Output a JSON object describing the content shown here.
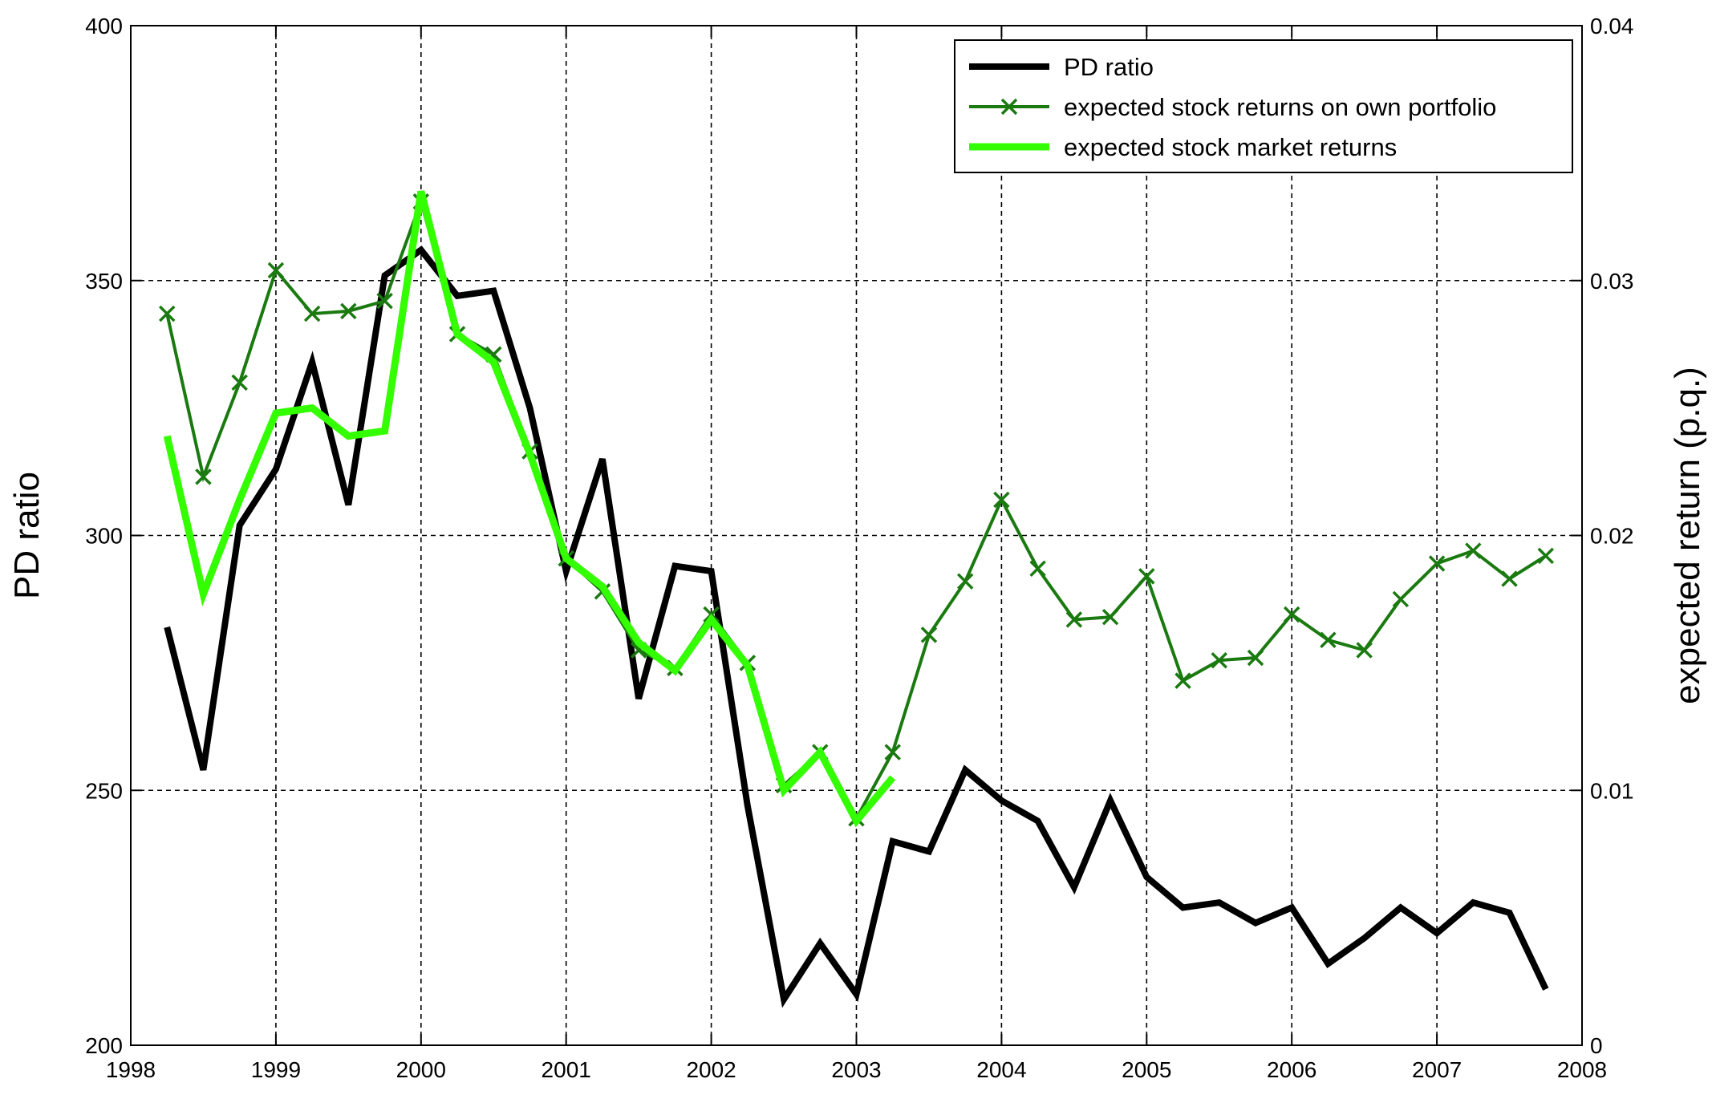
{
  "chart_data": {
    "type": "line",
    "xlabel": "",
    "ylabel_left": "PD ratio",
    "ylabel_right": "expected return (p.q.)",
    "xlim": [
      1998,
      2008
    ],
    "ylim_left": [
      200,
      400
    ],
    "ylim_right": [
      0,
      0.04
    ],
    "x_ticks": [
      "1998",
      "1999",
      "2000",
      "2001",
      "2002",
      "2003",
      "2004",
      "2005",
      "2006",
      "2007",
      "2008"
    ],
    "y_left_ticks": [
      "200",
      "250",
      "300",
      "350",
      "400"
    ],
    "y_right_ticks": [
      "0",
      "0.01",
      "0.02",
      "0.03",
      "0.04"
    ],
    "grid": true,
    "legend_position": "top-right",
    "series": [
      {
        "name": "PD ratio",
        "axis": "left",
        "color": "#000000",
        "marker": "none",
        "x": [
          1998.25,
          1998.5,
          1998.75,
          1999.0,
          1999.25,
          1999.5,
          1999.75,
          2000.0,
          2000.25,
          2000.5,
          2000.75,
          2001.0,
          2001.25,
          2001.5,
          2001.75,
          2002.0,
          2002.25,
          2002.5,
          2002.75,
          2003.0,
          2003.25,
          2003.5,
          2003.75,
          2004.0,
          2004.25,
          2004.5,
          2004.75,
          2005.0,
          2005.25,
          2005.5,
          2005.75,
          2006.0,
          2006.25,
          2006.5,
          2006.75,
          2007.0,
          2007.25,
          2007.5,
          2007.75
        ],
        "y": [
          282,
          254,
          302,
          313,
          334,
          306,
          351,
          356,
          347,
          348,
          325,
          293,
          315,
          268,
          294,
          293,
          247,
          209,
          220,
          210,
          240,
          238,
          254,
          248,
          244,
          231,
          248,
          233,
          227,
          228,
          224,
          227,
          216,
          221,
          227,
          222,
          228,
          226,
          211
        ]
      },
      {
        "name": "expected stock returns on own portfolio",
        "axis": "right",
        "color": "#1a7a10",
        "marker": "x",
        "x": [
          1998.25,
          1998.5,
          1998.75,
          1999.0,
          1999.25,
          1999.5,
          1999.75,
          2000.0,
          2000.25,
          2000.5,
          2000.75,
          2001.0,
          2001.25,
          2001.5,
          2001.75,
          2002.0,
          2002.25,
          2002.5,
          2002.75,
          2003.0,
          2003.25,
          2003.5,
          2003.75,
          2004.0,
          2004.25,
          2004.5,
          2004.75,
          2005.0,
          2005.25,
          2005.5,
          2005.75,
          2006.0,
          2006.25,
          2006.5,
          2006.75,
          2007.0,
          2007.25,
          2007.5,
          2007.75
        ],
        "y": [
          0.0287,
          0.0223,
          0.026,
          0.0304,
          0.0287,
          0.0288,
          0.0292,
          0.0331,
          0.0279,
          0.0271,
          0.0233,
          0.0191,
          0.0178,
          0.0155,
          0.0148,
          0.0169,
          0.015,
          0.0102,
          0.0115,
          0.0089,
          0.0115,
          0.0161,
          0.0182,
          0.0214,
          0.0187,
          0.0167,
          0.0168,
          0.0184,
          0.0143,
          0.0151,
          0.0152,
          0.0169,
          0.0159,
          0.0155,
          0.0175,
          0.0189,
          0.0194,
          0.0183,
          0.0192
        ]
      },
      {
        "name": "expected stock market returns",
        "axis": "right",
        "color": "#33ff00",
        "marker": "none",
        "x": [
          1998.25,
          1998.5,
          1998.75,
          1999.0,
          1999.25,
          1999.5,
          1999.75,
          2000.0,
          2000.25,
          2000.5,
          2000.75,
          2001.0,
          2001.25,
          2001.5,
          2001.75,
          2002.0,
          2002.25,
          2002.5,
          2002.75,
          2003.0,
          2003.25
        ],
        "y": [
          0.0239,
          0.0177,
          0.0214,
          0.0248,
          0.025,
          0.0239,
          0.0241,
          0.0335,
          0.0279,
          0.0268,
          0.0232,
          0.0191,
          0.018,
          0.0158,
          0.0147,
          0.0167,
          0.0149,
          0.01,
          0.0115,
          0.0088,
          0.0105
        ]
      }
    ]
  }
}
